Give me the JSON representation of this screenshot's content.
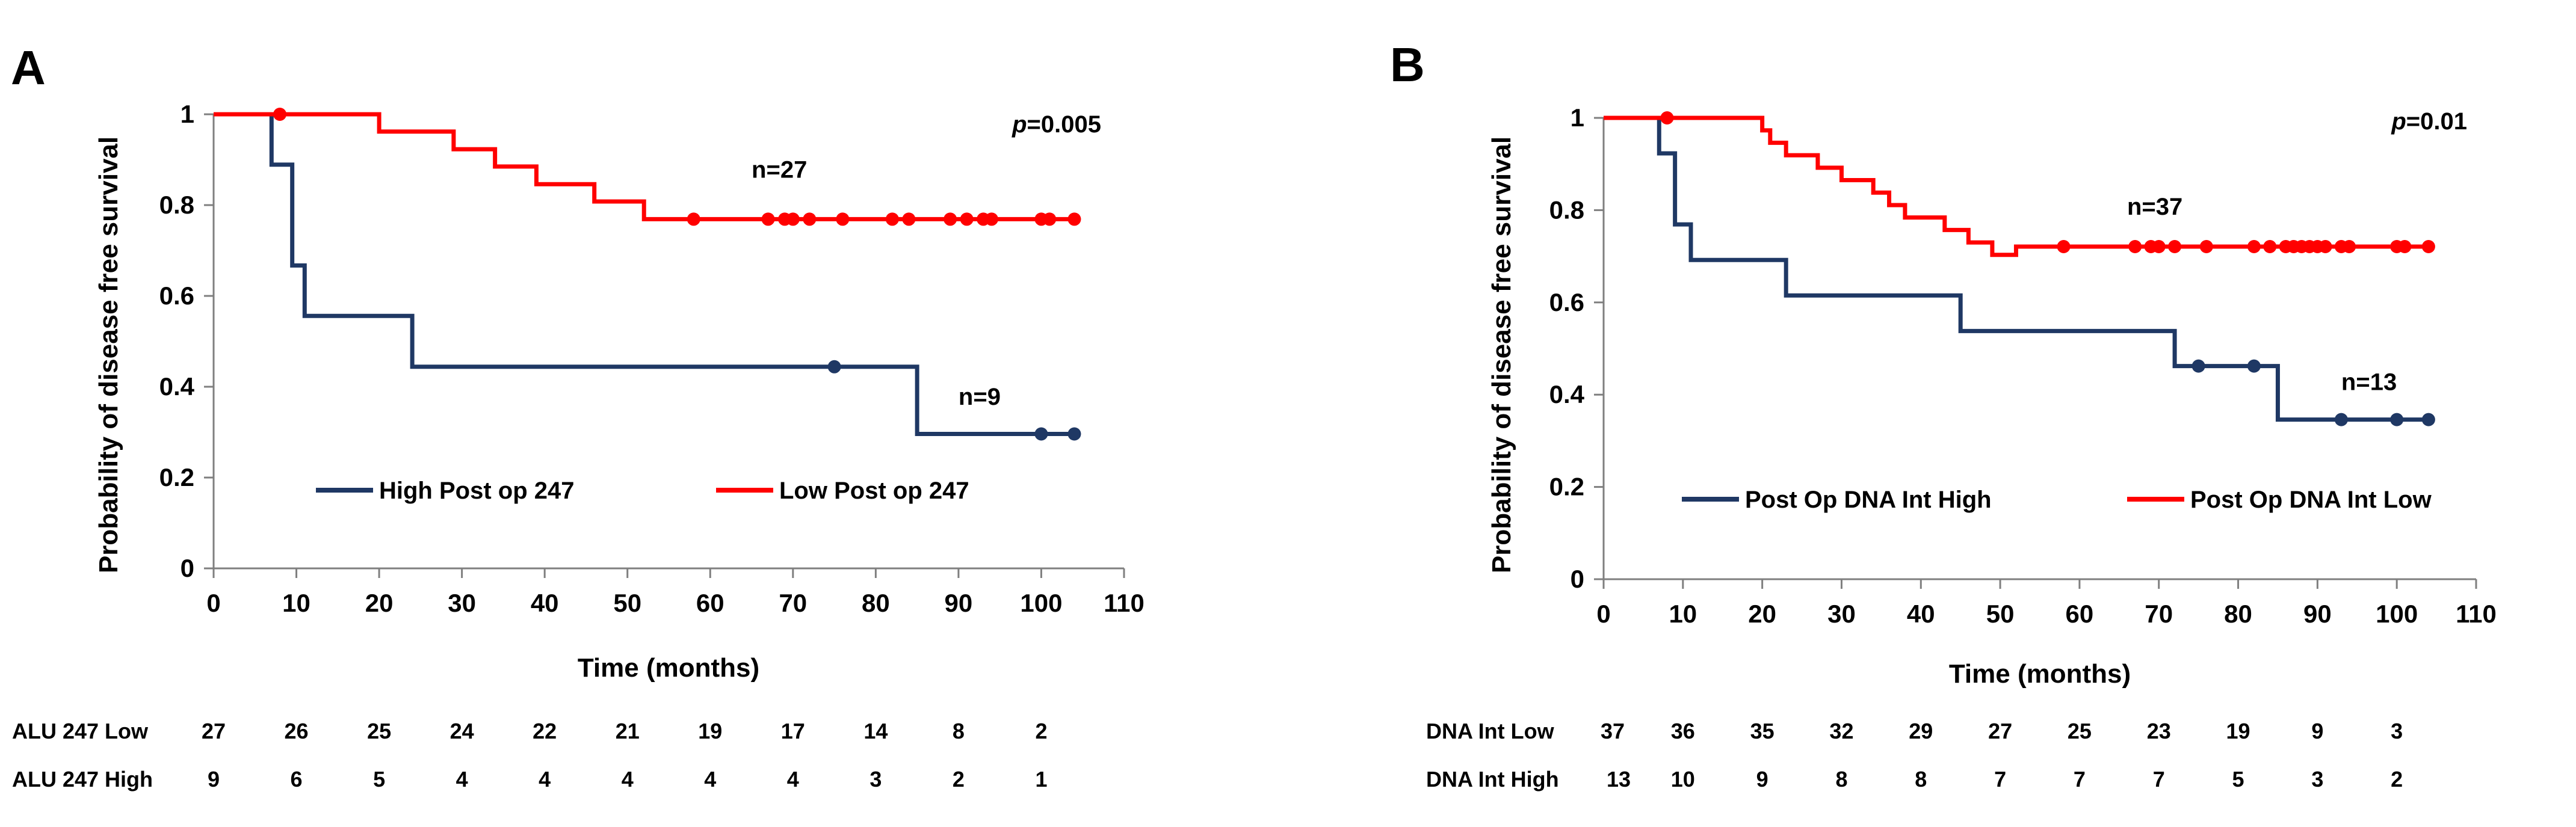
{
  "chart_data": [
    {
      "type": "line",
      "panel_label": "A",
      "p_value": "0.005",
      "xlabel": "Time (months)",
      "ylabel": "Probability of disease free survival",
      "xlim": [
        0,
        110
      ],
      "ylim": [
        0,
        1
      ],
      "xticks": [
        "0",
        "10",
        "20",
        "30",
        "40",
        "50",
        "60",
        "70",
        "80",
        "90",
        "100",
        "110"
      ],
      "yticks": [
        "0",
        "0.2",
        "0.4",
        "0.6",
        "0.8",
        "1"
      ],
      "series": [
        {
          "name": "High Post op 247",
          "color": "#1f3864",
          "steps": [
            [
              0,
              1
            ],
            [
              7,
              1
            ],
            [
              7,
              0.889
            ],
            [
              9.5,
              0.889
            ],
            [
              9.5,
              0.667
            ],
            [
              11,
              0.667
            ],
            [
              11,
              0.556
            ],
            [
              24,
              0.556
            ],
            [
              24,
              0.444
            ],
            [
              85,
              0.444
            ],
            [
              85,
              0.296
            ],
            [
              104,
              0.296
            ]
          ],
          "censored": [
            [
              75,
              0.444
            ],
            [
              100,
              0.296
            ],
            [
              104,
              0.296
            ]
          ],
          "n_label": "n=9",
          "n_at": [
            90,
            0.36
          ]
        },
        {
          "name": "Low Post op 247",
          "color": "#ff0000",
          "steps": [
            [
              0,
              1
            ],
            [
              20,
              1
            ],
            [
              20,
              0.962
            ],
            [
              29,
              0.962
            ],
            [
              29,
              0.923
            ],
            [
              34,
              0.923
            ],
            [
              34,
              0.885
            ],
            [
              39,
              0.885
            ],
            [
              39,
              0.846
            ],
            [
              46,
              0.846
            ],
            [
              46,
              0.808
            ],
            [
              52,
              0.808
            ],
            [
              52,
              0.769
            ],
            [
              104,
              0.769
            ]
          ],
          "censored": [
            [
              8,
              1
            ],
            [
              58,
              0.769
            ],
            [
              67,
              0.769
            ],
            [
              69,
              0.769
            ],
            [
              70,
              0.769
            ],
            [
              72,
              0.769
            ],
            [
              76,
              0.769
            ],
            [
              82,
              0.769
            ],
            [
              84,
              0.769
            ],
            [
              89,
              0.769
            ],
            [
              91,
              0.769
            ],
            [
              93,
              0.769
            ],
            [
              94,
              0.769
            ],
            [
              100,
              0.769
            ],
            [
              101,
              0.769
            ],
            [
              104,
              0.769
            ]
          ],
          "n_label": "n=27",
          "n_at": [
            65,
            0.86
          ]
        }
      ],
      "legend": [
        "High Post op 247",
        "Low Post op 247"
      ],
      "risk_table": {
        "times": [
          0,
          10,
          20,
          30,
          40,
          50,
          60,
          70,
          80,
          90,
          100
        ],
        "rows": [
          {
            "label": "ALU 247 Low",
            "values": [
              "27",
              "26",
              "25",
              "24",
              "22",
              "21",
              "19",
              "17",
              "14",
              "8",
              "2"
            ]
          },
          {
            "label": "ALU 247 High",
            "values": [
              "9",
              "6",
              "5",
              "4",
              "4",
              "4",
              "4",
              "4",
              "3",
              "2",
              "1"
            ]
          }
        ]
      }
    },
    {
      "type": "line",
      "panel_label": "B",
      "p_value": "0.01",
      "xlabel": "Time (months)",
      "ylabel": "Probability of disease free survival",
      "xlim": [
        0,
        110
      ],
      "ylim": [
        0,
        1
      ],
      "xticks": [
        "0",
        "10",
        "20",
        "30",
        "40",
        "50",
        "60",
        "70",
        "80",
        "90",
        "100",
        "110"
      ],
      "yticks": [
        "0",
        "0.2",
        "0.4",
        "0.6",
        "0.8",
        "1"
      ],
      "series": [
        {
          "name": "Post Op DNA Int High",
          "color": "#1f3864",
          "steps": [
            [
              0,
              1
            ],
            [
              7,
              1
            ],
            [
              7,
              0.923
            ],
            [
              9,
              0.923
            ],
            [
              9,
              0.769
            ],
            [
              11,
              0.769
            ],
            [
              11,
              0.692
            ],
            [
              23,
              0.692
            ],
            [
              23,
              0.615
            ],
            [
              45,
              0.615
            ],
            [
              45,
              0.538
            ],
            [
              72,
              0.538
            ],
            [
              72,
              0.462
            ],
            [
              85,
              0.462
            ],
            [
              85,
              0.346
            ],
            [
              104,
              0.346
            ]
          ],
          "censored": [
            [
              75,
              0.462
            ],
            [
              82,
              0.462
            ],
            [
              93,
              0.346
            ],
            [
              100,
              0.346
            ],
            [
              104,
              0.346
            ]
          ],
          "n_label": "n=13",
          "n_at": [
            93,
            0.41
          ]
        },
        {
          "name": "Post Op DNA Int Low",
          "color": "#ff0000",
          "steps": [
            [
              0,
              1
            ],
            [
              20,
              1
            ],
            [
              20,
              0.973
            ],
            [
              21,
              0.973
            ],
            [
              21,
              0.946
            ],
            [
              23,
              0.946
            ],
            [
              23,
              0.919
            ],
            [
              27,
              0.919
            ],
            [
              27,
              0.892
            ],
            [
              30,
              0.892
            ],
            [
              30,
              0.865
            ],
            [
              34,
              0.865
            ],
            [
              34,
              0.838
            ],
            [
              36,
              0.838
            ],
            [
              36,
              0.811
            ],
            [
              38,
              0.811
            ],
            [
              38,
              0.784
            ],
            [
              43,
              0.784
            ],
            [
              43,
              0.757
            ],
            [
              46,
              0.757
            ],
            [
              46,
              0.73
            ],
            [
              49,
              0.73
            ],
            [
              49,
              0.703
            ],
            [
              52,
              0.703
            ],
            [
              52,
              0.721
            ],
            [
              104,
              0.721
            ]
          ],
          "censored": [
            [
              8,
              1
            ],
            [
              58,
              0.721
            ],
            [
              67,
              0.721
            ],
            [
              69,
              0.721
            ],
            [
              70,
              0.721
            ],
            [
              72,
              0.721
            ],
            [
              76,
              0.721
            ],
            [
              82,
              0.721
            ],
            [
              84,
              0.721
            ],
            [
              86,
              0.721
            ],
            [
              87,
              0.721
            ],
            [
              88,
              0.721
            ],
            [
              89,
              0.721
            ],
            [
              90,
              0.721
            ],
            [
              91,
              0.721
            ],
            [
              93,
              0.721
            ],
            [
              94,
              0.721
            ],
            [
              100,
              0.721
            ],
            [
              101,
              0.721
            ],
            [
              104,
              0.721
            ]
          ],
          "n_label": "n=37",
          "n_at": [
            66,
            0.79
          ]
        }
      ],
      "legend": [
        "Post Op DNA Int High",
        "Post Op DNA Int Low"
      ],
      "risk_table": {
        "times": [
          0,
          10,
          20,
          30,
          40,
          50,
          60,
          70,
          80,
          90,
          100
        ],
        "rows": [
          {
            "label": "DNA Int Low",
            "values": [
              "37",
              "36",
              "35",
              "32",
              "29",
              "27",
              "25",
              "23",
              "19",
              "9",
              "3"
            ]
          },
          {
            "label": "DNA Int High",
            "values": [
              "13",
              "10",
              "9",
              "8",
              "8",
              "7",
              "7",
              "7",
              "5",
              "3",
              "2"
            ]
          }
        ]
      }
    }
  ]
}
